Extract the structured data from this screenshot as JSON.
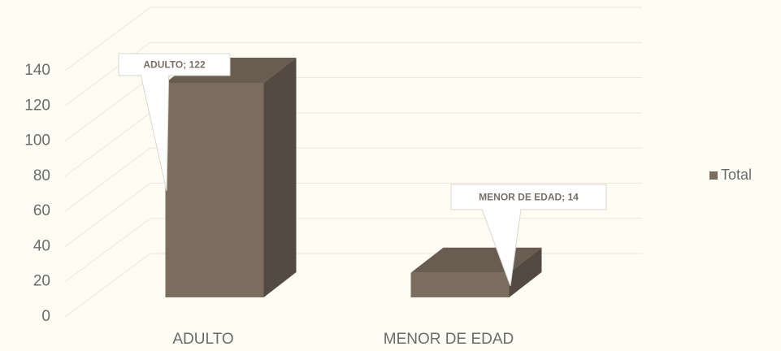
{
  "chart_data": {
    "type": "bar",
    "categories": [
      "ADULTO",
      "MENOR DE EDAD"
    ],
    "series": [
      {
        "name": "Total",
        "color": "#7b6d60",
        "values": [
          122,
          14
        ],
        "value_labels": [
          "ADULTO; 122",
          "MENOR DE EDAD; 14"
        ]
      }
    ],
    "ylim": [
      0,
      140
    ],
    "yticks": [
      0,
      20,
      40,
      60,
      80,
      100,
      120,
      140
    ],
    "grid": true,
    "legend": "right"
  }
}
